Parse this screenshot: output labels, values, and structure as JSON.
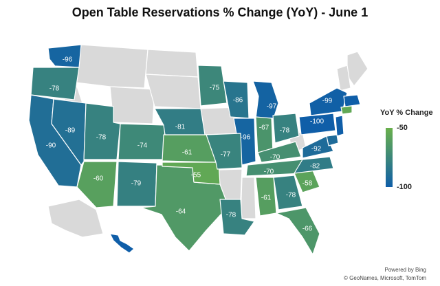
{
  "title": "Open Table Reservations % Change (YoY) - June 1",
  "legend": {
    "title": "YoY % Change",
    "max_label": "-50",
    "min_label": "-100",
    "color_max": "#6ab04c",
    "color_min": "#0f5ea8",
    "no_data_color": "#d9d9d9"
  },
  "credits": {
    "powered_by": "Powered by Bing",
    "attribution": "© GeoNames, Microsoft, TomTom"
  },
  "states": [
    {
      "name": "WA",
      "value": -96
    },
    {
      "name": "OR",
      "value": -78
    },
    {
      "name": "CA",
      "value": -90
    },
    {
      "name": "NV",
      "value": -89
    },
    {
      "name": "UT",
      "value": -78
    },
    {
      "name": "AZ",
      "value": -60
    },
    {
      "name": "CO",
      "value": -74
    },
    {
      "name": "NM",
      "value": -79
    },
    {
      "name": "TX",
      "value": -64
    },
    {
      "name": "KS",
      "value": -61
    },
    {
      "name": "OK",
      "value": -55
    },
    {
      "name": "NE",
      "value": -81
    },
    {
      "name": "MN",
      "value": -75
    },
    {
      "name": "WI",
      "value": -86
    },
    {
      "name": "MI",
      "value": -97
    },
    {
      "name": "IL",
      "value": -96
    },
    {
      "name": "MO",
      "value": -77
    },
    {
      "name": "IN",
      "value": -67
    },
    {
      "name": "OH",
      "value": -78
    },
    {
      "name": "KY",
      "value": -70
    },
    {
      "name": "TN",
      "value": -70
    },
    {
      "name": "AL",
      "value": -61
    },
    {
      "name": "GA",
      "value": -78
    },
    {
      "name": "FL",
      "value": -66
    },
    {
      "name": "SC",
      "value": -58
    },
    {
      "name": "NC",
      "value": -82
    },
    {
      "name": "VA",
      "value": -92
    },
    {
      "name": "PA",
      "value": -100
    },
    {
      "name": "NY",
      "value": -99
    },
    {
      "name": "LA",
      "value": -78
    },
    {
      "name": "NJ",
      "value": -100
    },
    {
      "name": "MD",
      "value": -92
    },
    {
      "name": "MA",
      "value": -100
    },
    {
      "name": "CT",
      "value": -55
    },
    {
      "name": "HI",
      "value": -100
    }
  ]
}
